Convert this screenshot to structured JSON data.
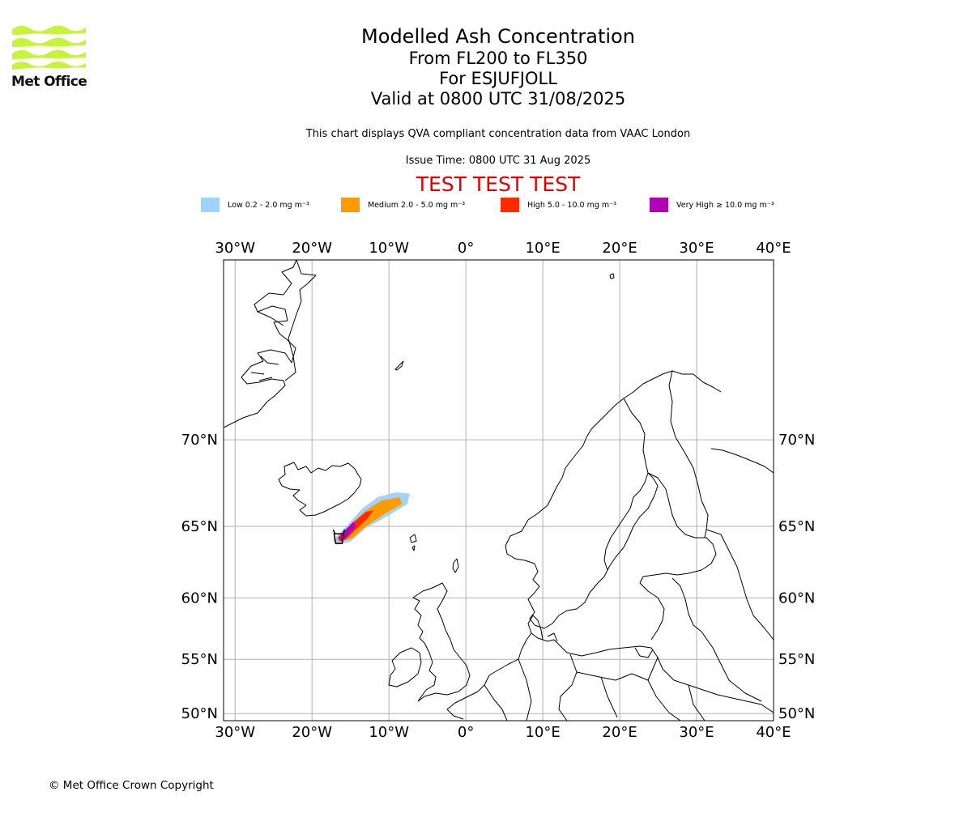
{
  "logo": {
    "name": "Met Office",
    "color": "#c6f43a"
  },
  "titles": {
    "main": "Modelled Ash Concentration",
    "levels": "From FL200 to FL350",
    "volcano": "For ESJUFJOLL",
    "valid": "Valid at 0800 UTC 31/08/2025"
  },
  "notes": {
    "qva": "This chart displays QVA compliant concentration data from VAAC London",
    "issue": "Issue Time: 0800 UTC 31 Aug 2025"
  },
  "test_banner": {
    "text": "TEST TEST TEST",
    "color": "#e00000"
  },
  "legend": [
    {
      "label": "Low 0.2 - 2.0 mg m⁻³",
      "color": "#a0d3fa"
    },
    {
      "label": "Medium 2.0 - 5.0 mg m⁻³",
      "color": "#ff9b00"
    },
    {
      "label": "High 5.0 - 10.0 mg m⁻³",
      "color": "#ff2a00"
    },
    {
      "label": "Very High  ≥  10.0 mg m⁻³",
      "color": "#b000b4"
    }
  ],
  "map": {
    "projection": "Mercator",
    "lon_range": [
      -31.5,
      40
    ],
    "lat_range": [
      49.3,
      77.5
    ],
    "lon_ticks": [
      {
        "value": -30,
        "label": "30°W"
      },
      {
        "value": -20,
        "label": "20°W"
      },
      {
        "value": -10,
        "label": "10°W"
      },
      {
        "value": 0,
        "label": "0°"
      },
      {
        "value": 10,
        "label": "10°E"
      },
      {
        "value": 20,
        "label": "20°E"
      },
      {
        "value": 30,
        "label": "30°E"
      },
      {
        "value": 40,
        "label": "40°E"
      }
    ],
    "lat_ticks": [
      {
        "value": 50,
        "label": "50°N"
      },
      {
        "value": 55,
        "label": "55°N"
      },
      {
        "value": 60,
        "label": "60°N"
      },
      {
        "value": 65,
        "label": "65°N"
      },
      {
        "value": 70,
        "label": "70°N"
      }
    ],
    "grid": true,
    "grid_color": "#b0b0b0",
    "ash_cloud": {
      "source": {
        "lon": -16.5,
        "lat": 64.2
      },
      "low": [
        [
          -17.3,
          64.1
        ],
        [
          -15.5,
          65.0
        ],
        [
          -13.5,
          66.1
        ],
        [
          -11.5,
          66.8
        ],
        [
          -9.0,
          67.1
        ],
        [
          -7.3,
          67.0
        ],
        [
          -7.6,
          66.4
        ],
        [
          -10.0,
          65.7
        ],
        [
          -13.0,
          64.9
        ],
        [
          -15.0,
          64.0
        ],
        [
          -16.8,
          63.8
        ]
      ],
      "medium": [
        [
          -16.8,
          64.2
        ],
        [
          -15.0,
          65.1
        ],
        [
          -13.0,
          66.0
        ],
        [
          -11.0,
          66.6
        ],
        [
          -8.6,
          66.8
        ],
        [
          -8.3,
          66.4
        ],
        [
          -10.5,
          65.8
        ],
        [
          -13.0,
          65.0
        ],
        [
          -14.8,
          64.2
        ],
        [
          -16.5,
          64.0
        ]
      ],
      "high": [
        [
          -16.6,
          64.3
        ],
        [
          -15.0,
          65.1
        ],
        [
          -13.0,
          65.9
        ],
        [
          -12.0,
          66.0
        ],
        [
          -12.8,
          65.5
        ],
        [
          -14.5,
          64.7
        ],
        [
          -15.7,
          64.1
        ]
      ],
      "very_high": [
        [
          -16.6,
          64.2
        ],
        [
          -15.6,
          64.8
        ],
        [
          -14.6,
          65.3
        ],
        [
          -14.3,
          65.0
        ],
        [
          -15.3,
          64.4
        ],
        [
          -16.2,
          64.0
        ]
      ]
    }
  },
  "copyright": "© Met Office Crown Copyright"
}
